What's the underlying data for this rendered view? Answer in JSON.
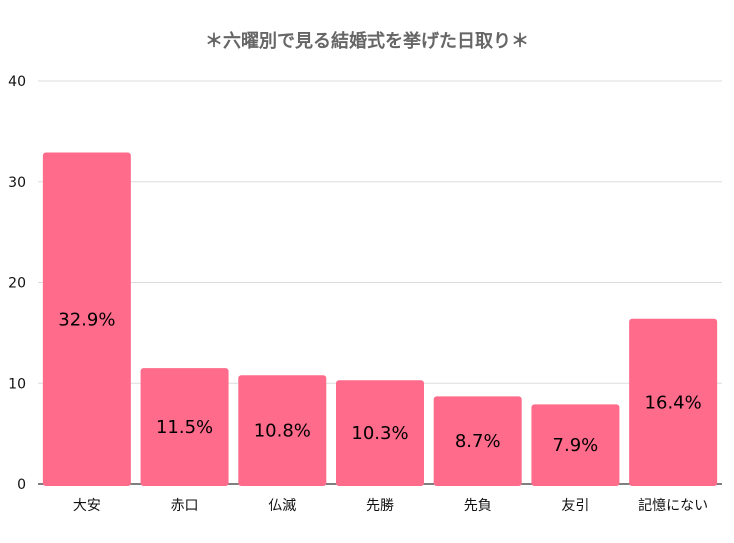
{
  "chart_data": {
    "type": "bar",
    "title": "＊六曜別で見る結婚式を挙げた日取り＊",
    "xlabel": "",
    "ylabel": "",
    "categories": [
      "大安",
      "赤口",
      "仏滅",
      "先勝",
      "先負",
      "友引",
      "記憶にない"
    ],
    "values": [
      32.9,
      11.5,
      10.8,
      10.3,
      8.7,
      7.9,
      16.4
    ],
    "data_labels": [
      "32.9%",
      "11.5%",
      "10.8%",
      "10.3%",
      "8.7%",
      "7.9%",
      "16.4%"
    ],
    "ylim": [
      0,
      40
    ],
    "yticks": [
      "0",
      "10",
      "20",
      "30",
      "40"
    ],
    "grid": true,
    "legend": "none",
    "colors": {
      "bar": "#ff6b8b",
      "grid": "#dddddd",
      "axis": "#333333",
      "title": "#666666",
      "text": "#000000"
    }
  }
}
